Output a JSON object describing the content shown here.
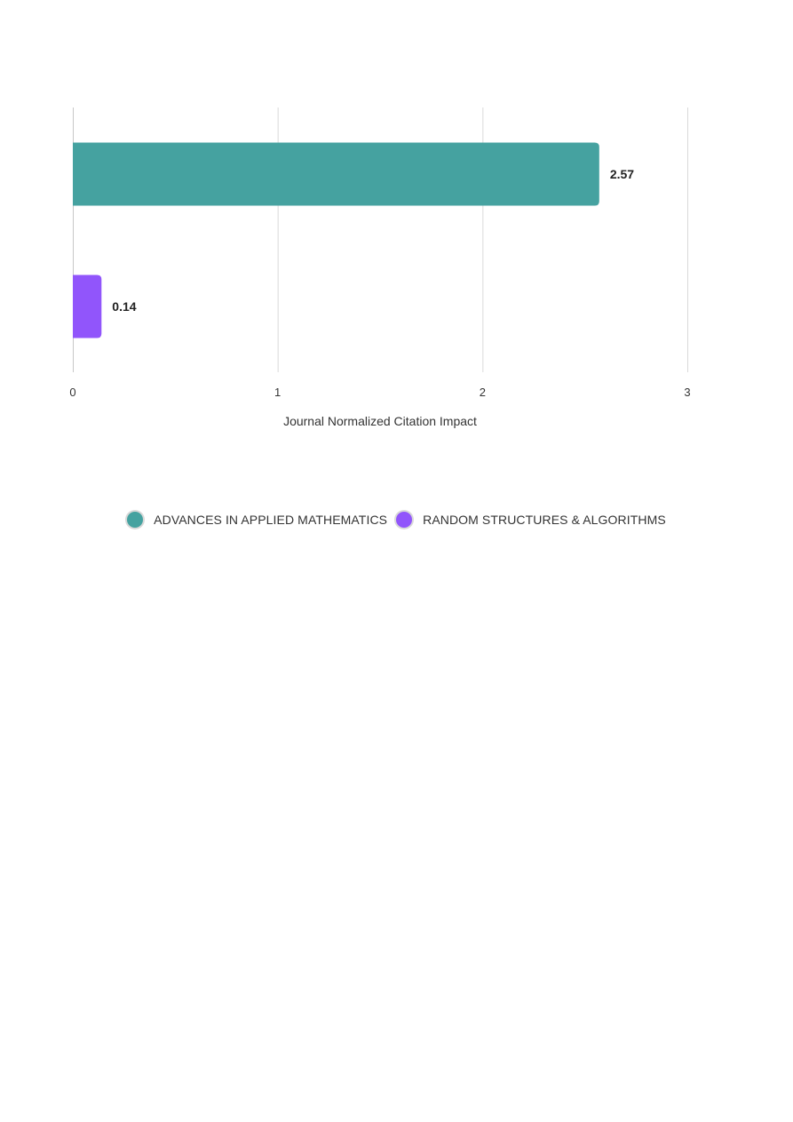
{
  "chart_data": {
    "type": "bar",
    "orientation": "horizontal",
    "categories": [
      "ADVANCES IN APPLIED MATHEMATICS",
      "RANDOM STRUCTURES & ALGORITHMS"
    ],
    "values": [
      2.57,
      0.14
    ],
    "value_labels": [
      "2.57",
      "0.14"
    ],
    "colors": [
      "#45a2a0",
      "#9155fb"
    ],
    "xlabel": "Journal Normalized Citation Impact",
    "xlim": [
      0,
      3
    ],
    "xticks": [
      0,
      1,
      2,
      3
    ],
    "grid": true,
    "legend_position": "bottom"
  }
}
